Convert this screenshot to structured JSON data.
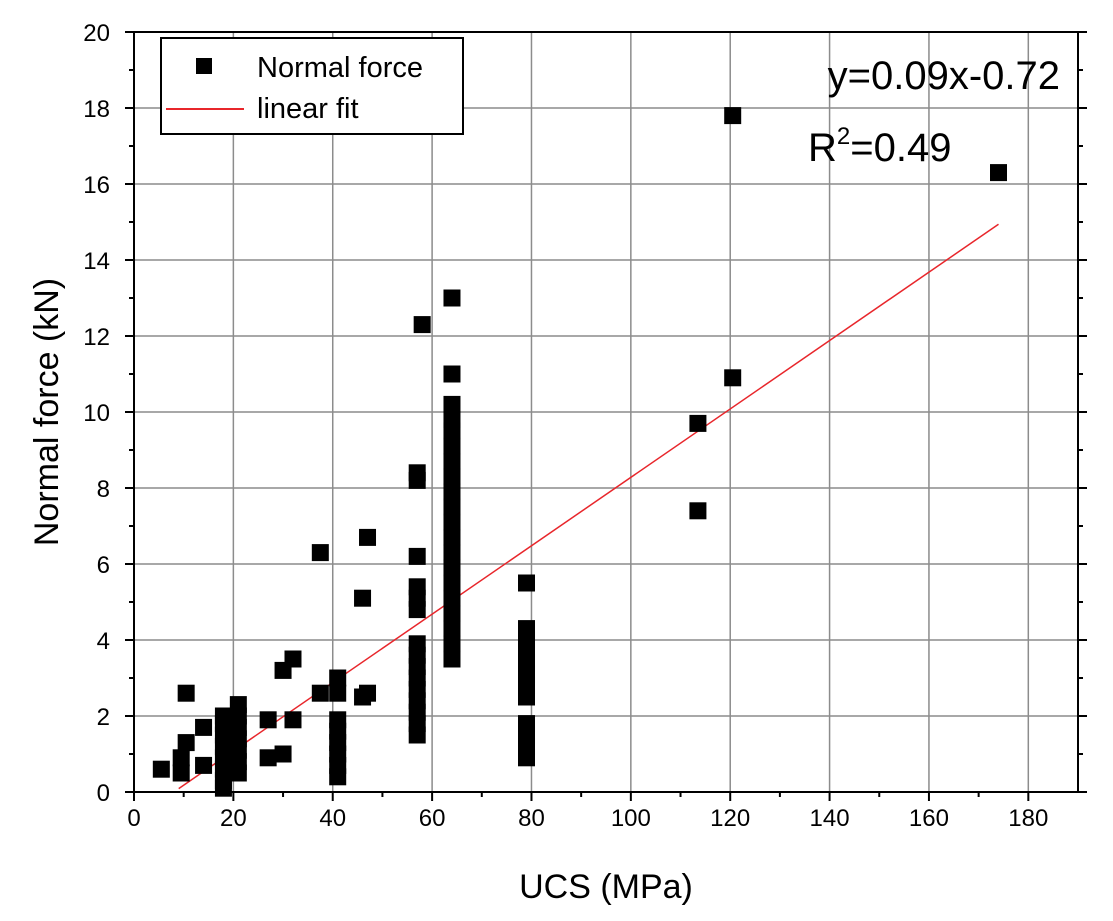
{
  "chart_data": {
    "type": "scatter",
    "xlabel": "UCS (MPa)",
    "ylabel": "Normal force (kN)",
    "xlim": [
      0,
      190
    ],
    "ylim": [
      0,
      20
    ],
    "x_ticks": [
      "0",
      "20",
      "40",
      "60",
      "80",
      "100",
      "120",
      "140",
      "160",
      "180"
    ],
    "y_ticks": [
      "0",
      "2",
      "4",
      "6",
      "8",
      "10",
      "12",
      "14",
      "16",
      "18",
      "20"
    ],
    "grid": true,
    "legend_position": "top-left",
    "legend": {
      "points_label": "Normal force",
      "fit_label": "linear fit"
    },
    "annotations": {
      "equation": "y=0.09x-0.72",
      "r_squared_prefix": "R",
      "r_squared_exponent": "2",
      "r_squared_value": "=0.49"
    },
    "colors": {
      "points": "#000000",
      "fit": "#e8262b",
      "grid": "#8c8c8c"
    },
    "series": [
      {
        "name": "Normal force",
        "kind": "points",
        "points": [
          [
            5.5,
            0.6
          ],
          [
            9.5,
            0.5
          ],
          [
            9.5,
            0.9
          ],
          [
            10.5,
            1.3
          ],
          [
            10.5,
            2.6
          ],
          [
            14,
            0.7
          ],
          [
            14,
            1.7
          ],
          [
            18,
            0.1
          ],
          [
            18,
            0.3
          ],
          [
            18,
            0.6
          ],
          [
            18,
            0.9
          ],
          [
            18,
            1.2
          ],
          [
            18,
            1.5
          ],
          [
            18,
            1.8
          ],
          [
            18,
            2.0
          ],
          [
            21,
            0.5
          ],
          [
            21,
            0.8
          ],
          [
            21,
            1.1
          ],
          [
            21,
            1.4
          ],
          [
            21,
            1.7
          ],
          [
            21,
            2.0
          ],
          [
            21,
            2.3
          ],
          [
            27,
            0.9
          ],
          [
            27,
            1.9
          ],
          [
            30,
            1.0
          ],
          [
            30,
            3.2
          ],
          [
            32,
            1.9
          ],
          [
            32,
            3.5
          ],
          [
            37.5,
            2.6
          ],
          [
            37.5,
            6.3
          ],
          [
            41,
            0.4
          ],
          [
            41,
            0.7
          ],
          [
            41,
            1.0
          ],
          [
            41,
            1.3
          ],
          [
            41,
            1.6
          ],
          [
            41,
            1.9
          ],
          [
            41,
            2.6
          ],
          [
            41,
            3.0
          ],
          [
            46,
            2.5
          ],
          [
            46,
            5.1
          ],
          [
            47,
            2.6
          ],
          [
            47,
            6.7
          ],
          [
            57,
            1.5
          ],
          [
            57,
            1.8
          ],
          [
            57,
            2.1
          ],
          [
            57,
            2.4
          ],
          [
            57,
            2.7
          ],
          [
            57,
            3.0
          ],
          [
            57,
            3.3
          ],
          [
            57,
            3.6
          ],
          [
            57,
            3.9
          ],
          [
            57,
            4.8
          ],
          [
            57,
            5.1
          ],
          [
            57,
            5.4
          ],
          [
            57,
            6.2
          ],
          [
            57,
            8.2
          ],
          [
            57,
            8.4
          ],
          [
            58,
            12.3
          ],
          [
            64,
            3.5
          ],
          [
            64,
            3.9
          ],
          [
            64,
            4.3
          ],
          [
            64,
            4.7
          ],
          [
            64,
            5.1
          ],
          [
            64,
            5.5
          ],
          [
            64,
            5.9
          ],
          [
            64,
            6.3
          ],
          [
            64,
            6.7
          ],
          [
            64,
            7.1
          ],
          [
            64,
            7.5
          ],
          [
            64,
            7.9
          ],
          [
            64,
            8.3
          ],
          [
            64,
            8.7
          ],
          [
            64,
            9.1
          ],
          [
            64,
            9.5
          ],
          [
            64,
            9.8
          ],
          [
            64,
            10.2
          ],
          [
            64,
            11.0
          ],
          [
            64,
            13.0
          ],
          [
            79,
            0.9
          ],
          [
            79,
            1.2
          ],
          [
            79,
            1.5
          ],
          [
            79,
            1.8
          ],
          [
            79,
            2.5
          ],
          [
            79,
            2.8
          ],
          [
            79,
            3.1
          ],
          [
            79,
            3.4
          ],
          [
            79,
            3.7
          ],
          [
            79,
            4.0
          ],
          [
            79,
            4.3
          ],
          [
            79,
            5.5
          ],
          [
            113.5,
            7.4
          ],
          [
            113.5,
            9.7
          ],
          [
            120.5,
            10.9
          ],
          [
            120.5,
            17.8
          ],
          [
            174,
            16.3
          ]
        ]
      },
      {
        "name": "linear fit",
        "kind": "line",
        "x": [
          9,
          174
        ],
        "y": [
          0.09,
          14.94
        ]
      }
    ]
  }
}
